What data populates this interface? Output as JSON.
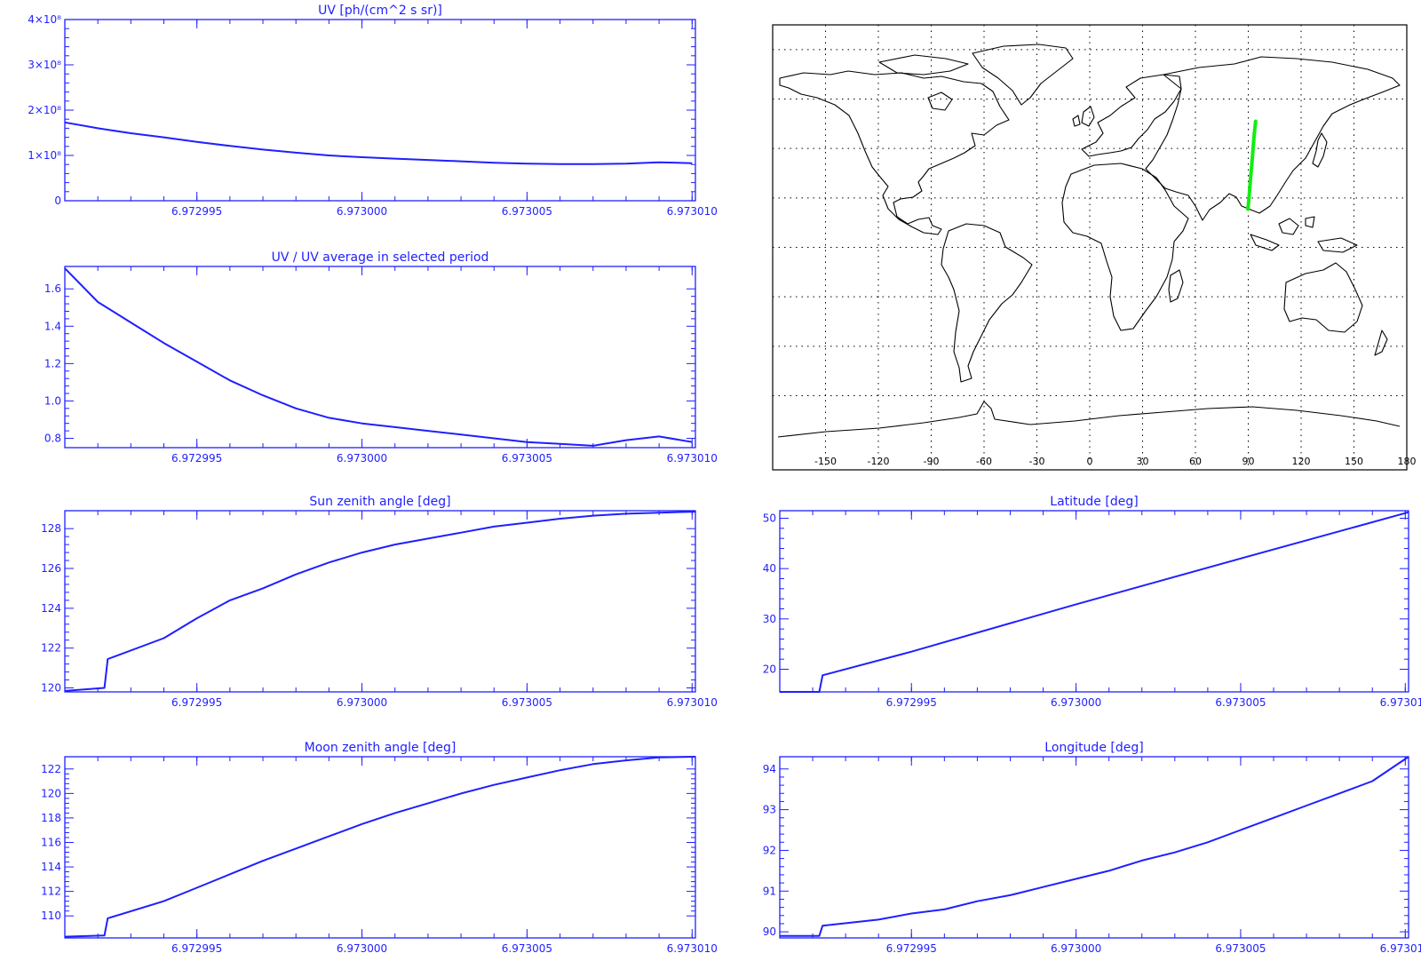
{
  "colors": {
    "axis": "#1f1fff",
    "line": "#1f1fff",
    "track": "#11ee11",
    "coast": "#000000",
    "grid": "#000000"
  },
  "map": {
    "xticks": [
      -150,
      -120,
      -90,
      -60,
      -30,
      0,
      30,
      60,
      90,
      120,
      150,
      180
    ],
    "xlim": [
      -180,
      180
    ],
    "ylim": [
      -90,
      90
    ],
    "grid_lon": [
      -150,
      -120,
      -90,
      -60,
      -30,
      0,
      30,
      60,
      90,
      120,
      150
    ],
    "grid_lat": [
      -60,
      -40,
      -20,
      0,
      20,
      40,
      60,
      80
    ],
    "grid": "dotted",
    "track": {
      "lon": [
        89.8,
        90.3,
        91.3,
        92.4,
        93.3,
        94.2
      ],
      "lat": [
        15.5,
        19,
        28,
        37,
        45,
        51
      ]
    }
  },
  "chart_data": [
    {
      "type": "line",
      "title": "UV [ph/(cm^2 s sr)]",
      "xlim": [
        6.972991,
        6.9730101
      ],
      "ylim": [
        0,
        400000000.0
      ],
      "xticks": [
        "6.972995",
        "6.973000",
        "6.973005",
        "6.973010"
      ],
      "yticks": [
        "0",
        "1×10⁸",
        "2×10⁸",
        "3×10⁸",
        "4×10⁸"
      ],
      "series": [
        {
          "x": [
            6.972991,
            6.972992,
            6.972993,
            6.972994,
            6.972995,
            6.972996,
            6.972997,
            6.972998,
            6.972999,
            6.973,
            6.973001,
            6.973002,
            6.973003,
            6.973004,
            6.973005,
            6.973006,
            6.973007,
            6.973008,
            6.973009,
            6.97301
          ],
          "y": [
            173000000.0,
            160000000.0,
            149000000.0,
            140000000.0,
            130000000.0,
            121000000.0,
            113000000.0,
            106000000.0,
            100000000.0,
            96000000.0,
            93000000.0,
            90000000.0,
            87000000.0,
            84000000.0,
            82000000.0,
            81000000.0,
            81000000.0,
            82000000.0,
            85000000.0,
            83000000.0
          ]
        }
      ]
    },
    {
      "type": "line",
      "title": "UV / UV average in selected period",
      "xlim": [
        6.972991,
        6.9730101
      ],
      "ylim": [
        0.75,
        1.72
      ],
      "xticks": [
        "6.972995",
        "6.973000",
        "6.973005",
        "6.973010"
      ],
      "yticks": [
        "0.8",
        "1.0",
        "1.2",
        "1.4",
        "1.6"
      ],
      "series": [
        {
          "x": [
            6.972991,
            6.972992,
            6.972993,
            6.972994,
            6.972995,
            6.972996,
            6.972997,
            6.972998,
            6.972999,
            6.973,
            6.973001,
            6.973002,
            6.973003,
            6.973004,
            6.973005,
            6.973006,
            6.973007,
            6.973008,
            6.973009,
            6.97301
          ],
          "y": [
            1.71,
            1.53,
            1.42,
            1.31,
            1.21,
            1.11,
            1.03,
            0.96,
            0.91,
            0.88,
            0.86,
            0.84,
            0.82,
            0.8,
            0.78,
            0.77,
            0.76,
            0.79,
            0.81,
            0.78
          ]
        }
      ]
    },
    {
      "type": "line",
      "title": "Sun zenith angle [deg]",
      "xlim": [
        6.972991,
        6.9730101
      ],
      "ylim": [
        119.8,
        128.9
      ],
      "xticks": [
        "6.972995",
        "6.973000",
        "6.973005",
        "6.973010"
      ],
      "yticks": [
        "120",
        "122",
        "124",
        "126",
        "128"
      ],
      "series": [
        {
          "x": [
            6.972991,
            6.9729922,
            6.9729923,
            6.972994,
            6.972995,
            6.972996,
            6.972997,
            6.972998,
            6.972999,
            6.973,
            6.973001,
            6.973002,
            6.973003,
            6.973004,
            6.973005,
            6.973006,
            6.973007,
            6.973008,
            6.973009,
            6.9730101
          ],
          "y": [
            119.85,
            120.0,
            121.45,
            122.5,
            123.5,
            124.4,
            125.0,
            125.7,
            126.3,
            126.8,
            127.2,
            127.5,
            127.8,
            128.1,
            128.3,
            128.5,
            128.65,
            128.75,
            128.8,
            128.85
          ]
        }
      ]
    },
    {
      "type": "line",
      "title": "Moon zenith angle [deg]",
      "xlim": [
        6.972991,
        6.9730101
      ],
      "ylim": [
        108.2,
        123.0
      ],
      "xticks": [
        "6.972995",
        "6.973000",
        "6.973005",
        "6.973010"
      ],
      "yticks": [
        "110",
        "112",
        "114",
        "116",
        "118",
        "120",
        "122"
      ],
      "series": [
        {
          "x": [
            6.972991,
            6.9729922,
            6.9729923,
            6.972994,
            6.972995,
            6.972996,
            6.972997,
            6.972998,
            6.972999,
            6.973,
            6.973001,
            6.973002,
            6.973003,
            6.973004,
            6.973005,
            6.973006,
            6.973007,
            6.973008,
            6.973009,
            6.9730101
          ],
          "y": [
            108.3,
            108.4,
            109.8,
            111.2,
            112.3,
            113.4,
            114.5,
            115.5,
            116.5,
            117.5,
            118.4,
            119.2,
            120.0,
            120.7,
            121.3,
            121.9,
            122.4,
            122.7,
            122.95,
            123.0
          ]
        }
      ]
    },
    {
      "type": "line",
      "title": "Latitude [deg]",
      "xlim": [
        6.972991,
        6.9730101
      ],
      "ylim": [
        15.5,
        51.5
      ],
      "xticks": [
        "6.972995",
        "6.973000",
        "6.973005",
        "6.973010"
      ],
      "yticks": [
        "20",
        "30",
        "40",
        "50"
      ],
      "series": [
        {
          "x": [
            6.972991,
            6.9729922,
            6.9729923,
            6.972995,
            6.973,
            6.973005,
            6.9730101
          ],
          "y": [
            15.5,
            15.5,
            18.8,
            23.5,
            32.9,
            42.0,
            51.2
          ]
        }
      ]
    },
    {
      "type": "line",
      "title": "Longitude [deg]",
      "xlim": [
        6.972991,
        6.9730101
      ],
      "ylim": [
        89.85,
        94.3
      ],
      "xticks": [
        "6.972995",
        "6.973000",
        "6.973005",
        "6.973010"
      ],
      "yticks": [
        "90",
        "91",
        "92",
        "93",
        "94"
      ],
      "series": [
        {
          "x": [
            6.972991,
            6.9729922,
            6.9729923,
            6.972994,
            6.972995,
            6.972996,
            6.972997,
            6.972998,
            6.972999,
            6.973,
            6.973001,
            6.973002,
            6.973003,
            6.973004,
            6.973005,
            6.973006,
            6.973007,
            6.973008,
            6.973009,
            6.9730101
          ],
          "y": [
            89.9,
            89.9,
            90.15,
            90.3,
            90.45,
            90.55,
            90.75,
            90.9,
            91.1,
            91.3,
            91.5,
            91.75,
            91.95,
            92.2,
            92.5,
            92.8,
            93.1,
            93.4,
            93.7,
            94.3
          ]
        }
      ]
    }
  ]
}
